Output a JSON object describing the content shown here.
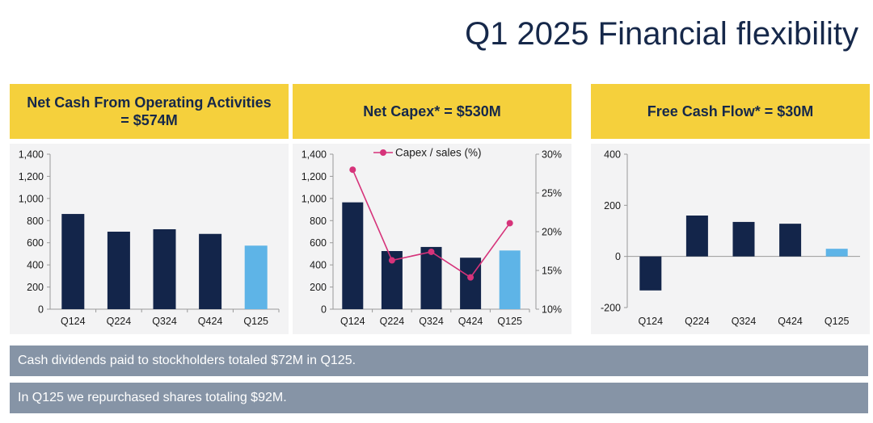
{
  "page": {
    "title": "Q1 2025 Financial flexibility"
  },
  "colors": {
    "bar_dark": "#13254a",
    "bar_highlight": "#5eb4e7",
    "header_bg": "#f5d03c",
    "panel_bg": "#f3f3f4",
    "line": "#d6337a",
    "banner_bg": "#8694a6"
  },
  "panels": [
    {
      "heading": "Net Cash From Operating Activities = $574M"
    },
    {
      "heading": "Net Capex* = $530M"
    },
    {
      "heading": "Free Cash Flow* = $30M"
    }
  ],
  "chart_data": [
    {
      "type": "bar",
      "title": "Net Cash From Operating Activities = $574M",
      "categories": [
        "Q124",
        "Q224",
        "Q324",
        "Q424",
        "Q125"
      ],
      "values": [
        860,
        700,
        722,
        680,
        574
      ],
      "highlight_index": 4,
      "ylim": [
        0,
        1400
      ],
      "yticks": [
        0,
        200,
        400,
        600,
        800,
        1000,
        1200,
        1400
      ],
      "ytick_labels": [
        "0",
        "200",
        "400",
        "600",
        "800",
        "1,000",
        "1,200",
        "1,400"
      ]
    },
    {
      "type": "bar",
      "title": "Net Capex* = $530M",
      "categories": [
        "Q124",
        "Q224",
        "Q324",
        "Q424",
        "Q125"
      ],
      "values": [
        965,
        525,
        562,
        465,
        530
      ],
      "highlight_index": 4,
      "ylim": [
        0,
        1400
      ],
      "yticks": [
        0,
        200,
        400,
        600,
        800,
        1000,
        1200,
        1400
      ],
      "ytick_labels": [
        "0",
        "200",
        "400",
        "600",
        "800",
        "1,000",
        "1,200",
        "1,400"
      ],
      "secondary_series": {
        "name": "Capex / sales (%)",
        "type": "line",
        "values": [
          28,
          16.3,
          17.4,
          14.1,
          21.1
        ],
        "ylim": [
          10,
          30
        ],
        "yticks": [
          10,
          15,
          20,
          25,
          30
        ],
        "ytick_labels": [
          "10%",
          "15%",
          "20%",
          "25%",
          "30%"
        ]
      },
      "legend": "top"
    },
    {
      "type": "bar",
      "title": "Free Cash Flow* = $30M",
      "categories": [
        "Q124",
        "Q224",
        "Q324",
        "Q424",
        "Q125"
      ],
      "values": [
        -133,
        160,
        135,
        128,
        30
      ],
      "highlight_index": 4,
      "ylim": [
        -200,
        400
      ],
      "yticks": [
        -200,
        0,
        200,
        400
      ],
      "ytick_labels": [
        "-200",
        "0",
        "200",
        "400"
      ]
    }
  ],
  "banners": [
    "Cash dividends paid to stockholders totaled $72M in Q125.",
    "In Q125 we repurchased shares totaling $92M."
  ]
}
